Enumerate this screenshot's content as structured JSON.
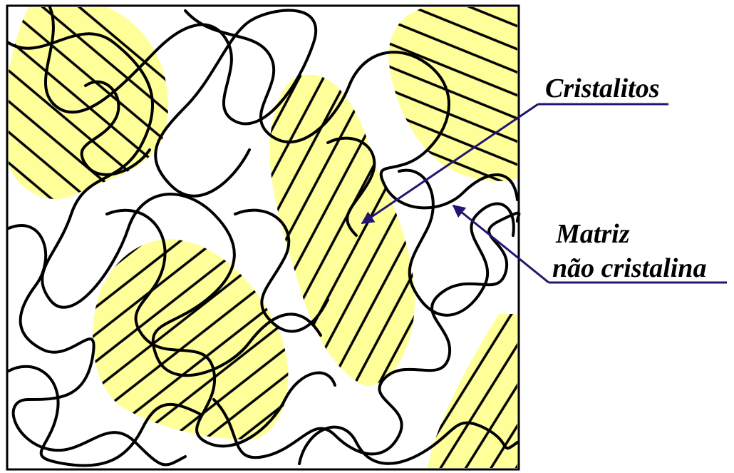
{
  "labels": {
    "crystallites": "Cristalitos",
    "matrix_line1": "Matriz",
    "matrix_line2": "não cristalina"
  }
}
